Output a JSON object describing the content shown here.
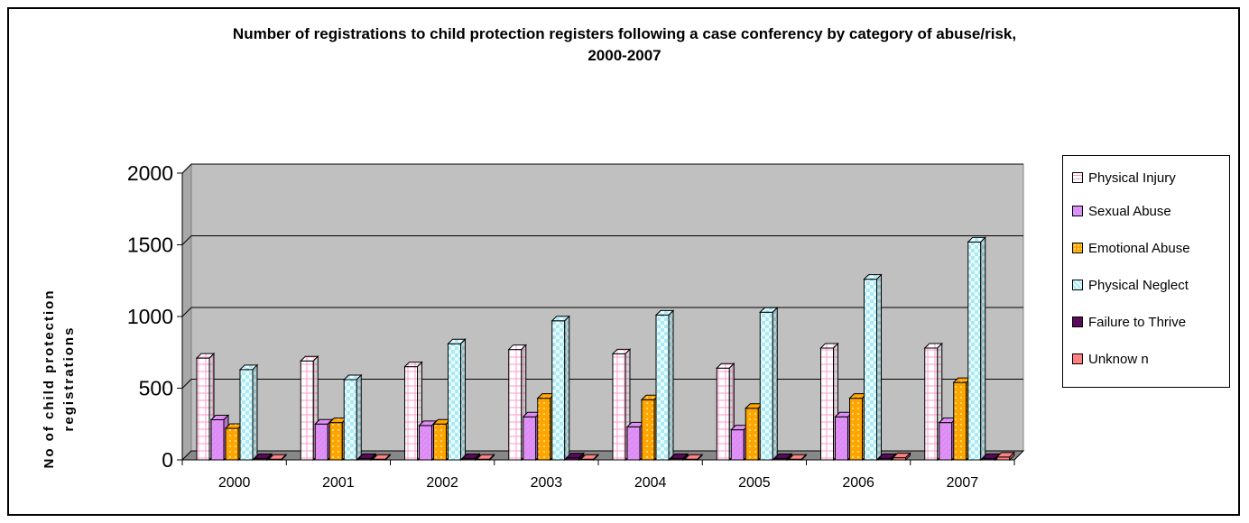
{
  "chart_data": {
    "type": "bar",
    "title_lines": [
      "Number of registrations to child protection registers following a case conferency by category of abuse/risk,",
      "2000-2007"
    ],
    "ylabel_lines": [
      "No of child protection",
      "registrations"
    ],
    "xlabel": "",
    "categories": [
      "2000",
      "2001",
      "2002",
      "2003",
      "2004",
      "2005",
      "2006",
      "2007"
    ],
    "ylim": [
      0,
      2000
    ],
    "yticks": [
      0,
      500,
      1000,
      1500,
      2000
    ],
    "grid": true,
    "legend_position": "right",
    "series": [
      {
        "name": "Physical Injury",
        "color": "#ffffff",
        "pattern": "grid-pink",
        "values": [
          710,
          690,
          650,
          770,
          740,
          640,
          780,
          780
        ]
      },
      {
        "name": "Sexual Abuse",
        "color": "#ee82ee",
        "pattern": "diagonal",
        "values": [
          280,
          250,
          240,
          300,
          230,
          210,
          300,
          260
        ]
      },
      {
        "name": "Emotional Abuse",
        "color": "#ffa500",
        "pattern": "dots",
        "values": [
          220,
          260,
          250,
          430,
          420,
          360,
          430,
          540
        ]
      },
      {
        "name": "Physical Neglect",
        "color": "#e6ffff",
        "pattern": "checker-cyan",
        "values": [
          630,
          560,
          810,
          970,
          1010,
          1030,
          1260,
          1520
        ]
      },
      {
        "name": "Failure to Thrive",
        "color": "#5a0a5a",
        "pattern": "solid",
        "values": [
          10,
          10,
          10,
          15,
          10,
          10,
          10,
          10
        ]
      },
      {
        "name": "Unknow n",
        "color": "#ff8080",
        "pattern": "solid",
        "values": [
          5,
          5,
          5,
          5,
          5,
          5,
          15,
          20
        ]
      }
    ]
  }
}
